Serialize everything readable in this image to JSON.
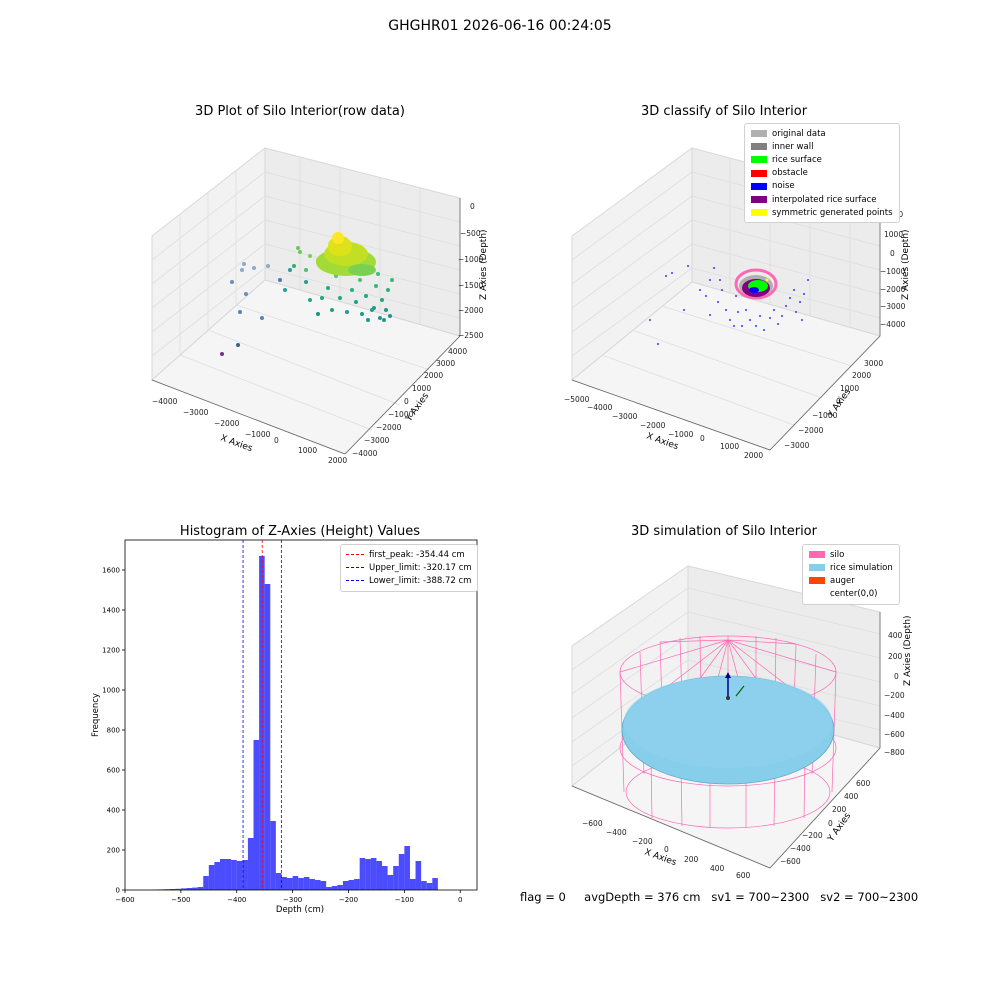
{
  "suptitle": "GHGHR01 2026-06-16 00:24:05",
  "panel1": {
    "title": "3D Plot of Silo Interior(row data)",
    "x_label": "X Axies",
    "y_label": "Y Axies",
    "z_label": "Z Axies (Depth)",
    "x_ticks": [
      "−4000",
      "−3000",
      "−2000",
      "−1000",
      "0",
      "1000",
      "2000"
    ],
    "y_ticks": [
      "−4000",
      "−3000",
      "−2000",
      "−1000",
      "0",
      "1000",
      "2000",
      "3000",
      "4000"
    ],
    "z_ticks": [
      "0",
      "−500",
      "−1000",
      "−1500",
      "−2000",
      "−2500"
    ]
  },
  "panel2": {
    "title": "3D classify of Silo Interior",
    "x_label": "X Axies",
    "y_label": "Y Axies",
    "z_label": "Z Axies (Depth)",
    "x_ticks": [
      "−5000",
      "−4000",
      "−3000",
      "−2000",
      "−1000",
      "0",
      "1000",
      "2000"
    ],
    "y_ticks": [
      "−3000",
      "−2000",
      "−1000",
      "0",
      "1000",
      "2000",
      "3000"
    ],
    "z_ticks": [
      "2000",
      "1000",
      "0",
      "−1000",
      "−2000",
      "−3000",
      "−4000"
    ],
    "legend": [
      {
        "label": "original data",
        "color": "#b0b0b0"
      },
      {
        "label": "inner wall",
        "color": "#808080"
      },
      {
        "label": "rice surface",
        "color": "#00ff00"
      },
      {
        "label": "obstacle",
        "color": "#ff0000"
      },
      {
        "label": "noise",
        "color": "#0000ff"
      },
      {
        "label": "interpolated rice surface",
        "color": "#800080"
      },
      {
        "label": "symmetric generated points",
        "color": "#ffff00"
      }
    ]
  },
  "panel3": {
    "title": "Histogram of Z-Axies (Height) Values",
    "legend": [
      {
        "label": "first_peak: -354.44 cm",
        "color": "#ff0000"
      },
      {
        "label": "Upper_limit: -320.17 cm",
        "color": "#0000ff"
      },
      {
        "label": "Lower_limit: -388.72 cm",
        "color": "#0000ff"
      }
    ]
  },
  "panel4": {
    "title": "3D simulation of Silo Interior",
    "x_label": "X Axies",
    "y_label": "Y Axies",
    "z_label": "Z Axies (Depth)",
    "x_ticks": [
      "−600",
      "−400",
      "−200",
      "0",
      "200",
      "400",
      "600"
    ],
    "y_ticks": [
      "−600",
      "−400",
      "−200",
      "0",
      "200",
      "400",
      "600"
    ],
    "z_ticks": [
      "200",
      "0",
      "−200",
      "−400",
      "−600",
      "−800"
    ],
    "z_top": "400",
    "legend": [
      {
        "label": "silo",
        "color": "#ff69b4"
      },
      {
        "label": "rice simulation",
        "color": "#87ceeb"
      },
      {
        "label": "auger",
        "color": "#ff4500"
      },
      {
        "label": "center(0,0)",
        "color": "#ffffff"
      }
    ]
  },
  "footer": {
    "flag": "flag = 0",
    "avg_depth": "avgDepth = 376 cm",
    "sv1": "sv1 = 700~2300",
    "sv2": "sv2 = 700~2300"
  },
  "chart_data": {
    "type": "bar",
    "title": "Histogram of Z-Axies (Height) Values",
    "xlabel": "Depth (cm)",
    "ylabel": "Frequency",
    "xlim": [
      -600,
      30
    ],
    "ylim": [
      0,
      1750
    ],
    "x_ticks": [
      -600,
      -500,
      -400,
      -300,
      -200,
      -100,
      0
    ],
    "y_ticks": [
      0,
      200,
      400,
      600,
      800,
      1000,
      1200,
      1400,
      1600
    ],
    "bar_color": "#0000ff",
    "bin_width": 10,
    "bin_starts": [
      -550,
      -540,
      -530,
      -520,
      -510,
      -500,
      -490,
      -480,
      -470,
      -460,
      -450,
      -440,
      -430,
      -420,
      -410,
      -400,
      -390,
      -380,
      -370,
      -360,
      -350,
      -340,
      -330,
      -320,
      -310,
      -300,
      -290,
      -280,
      -270,
      -260,
      -250,
      -240,
      -230,
      -220,
      -210,
      -200,
      -190,
      -180,
      -170,
      -160,
      -150,
      -140,
      -130,
      -120,
      -110,
      -100,
      -90,
      -80,
      -70,
      -60,
      -50,
      -40,
      -30,
      -20,
      -10,
      0
    ],
    "values": [
      2,
      3,
      4,
      5,
      6,
      8,
      10,
      12,
      15,
      70,
      125,
      140,
      155,
      155,
      150,
      145,
      150,
      260,
      750,
      1670,
      1530,
      345,
      85,
      65,
      60,
      70,
      60,
      65,
      55,
      50,
      45,
      15,
      20,
      25,
      45,
      50,
      55,
      160,
      155,
      160,
      145,
      120,
      75,
      120,
      180,
      220,
      55,
      145,
      45,
      35,
      60,
      0,
      0,
      0,
      0,
      0
    ],
    "lines": [
      {
        "name": "first_peak",
        "x": -354.44,
        "color": "#ff0000"
      },
      {
        "name": "Upper_limit",
        "x": -320.17,
        "color": "#0000ff"
      },
      {
        "name": "Lower_limit",
        "x": -388.72,
        "color": "#0000ff"
      }
    ]
  }
}
